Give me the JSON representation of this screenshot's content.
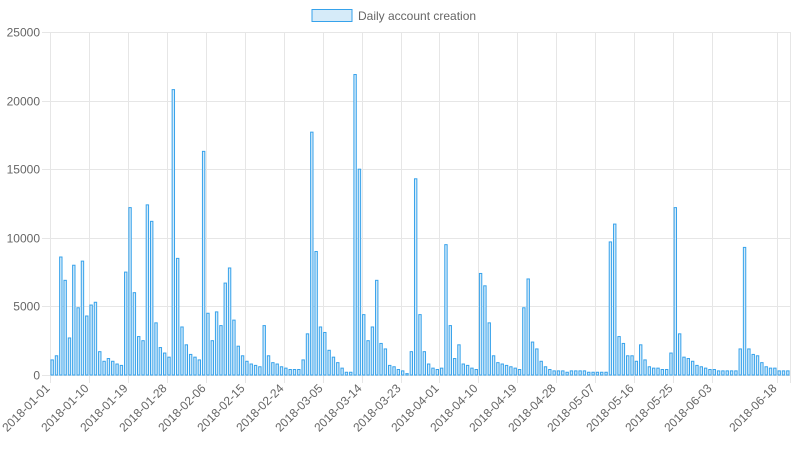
{
  "chart_data": {
    "type": "bar",
    "legend": {
      "label": "Daily account creation",
      "position": "top-center"
    },
    "colors": {
      "bar_fill": "#d6ebf9",
      "bar_stroke": "#36a2eb",
      "grid": "#e6e6e6",
      "text": "#666666"
    },
    "x_start": "2018-01-01",
    "x_tick_labels": [
      "2018-01-01",
      "2018-01-10",
      "2018-01-19",
      "2018-01-28",
      "2018-02-06",
      "2018-02-15",
      "2018-02-24",
      "2018-03-05",
      "2018-03-14",
      "2018-03-23",
      "2018-04-01",
      "2018-04-10",
      "2018-04-19",
      "2018-04-28",
      "2018-05-07",
      "2018-05-16",
      "2018-05-25",
      "2018-06-03",
      "2018-06-18"
    ],
    "y_ticks": [
      0,
      5000,
      10000,
      15000,
      20000,
      25000
    ],
    "y_tick_labels": [
      "0",
      "5000",
      "10000",
      "15000",
      "20000",
      "25000"
    ],
    "ylim": [
      0,
      25000
    ],
    "grid": true,
    "series": [
      {
        "name": "Daily account creation",
        "values": [
          1100,
          1400,
          8600,
          6900,
          2700,
          8000,
          4900,
          8300,
          4300,
          5100,
          5300,
          1700,
          1000,
          1200,
          1000,
          800,
          700,
          7500,
          12200,
          6000,
          2800,
          2500,
          12400,
          11200,
          3800,
          2000,
          1600,
          1300,
          20800,
          8500,
          3500,
          2200,
          1500,
          1300,
          1100,
          16300,
          4500,
          2500,
          4600,
          3600,
          6700,
          7800,
          4000,
          2100,
          1400,
          1000,
          800,
          700,
          600,
          3600,
          1400,
          900,
          800,
          600,
          500,
          400,
          400,
          400,
          1100,
          3000,
          17700,
          9000,
          3500,
          3100,
          1800,
          1300,
          900,
          500,
          200,
          200,
          21900,
          15000,
          4400,
          2500,
          3500,
          6900,
          2300,
          1900,
          700,
          600,
          400,
          300,
          100,
          1700,
          14300,
          4400,
          1700,
          800,
          500,
          400,
          500,
          9500,
          3600,
          1200,
          2200,
          800,
          700,
          500,
          400,
          7400,
          6500,
          3800,
          1400,
          900,
          800,
          700,
          600,
          500,
          400,
          4900,
          7000,
          2400,
          1900,
          1000,
          600,
          400,
          300,
          300,
          300,
          200,
          300,
          300,
          300,
          300,
          200,
          200,
          200,
          200,
          200,
          9700,
          11000,
          2800,
          2300,
          1400,
          1400,
          1000,
          2200,
          1100,
          600,
          500,
          500,
          400,
          400,
          1600,
          12200,
          3000,
          1300,
          1200,
          1000,
          700,
          600,
          500,
          400,
          400,
          300,
          300,
          300,
          300,
          300,
          1900,
          9300,
          1900,
          1500,
          1400,
          900,
          600,
          500,
          500,
          300,
          300,
          300
        ]
      }
    ]
  }
}
